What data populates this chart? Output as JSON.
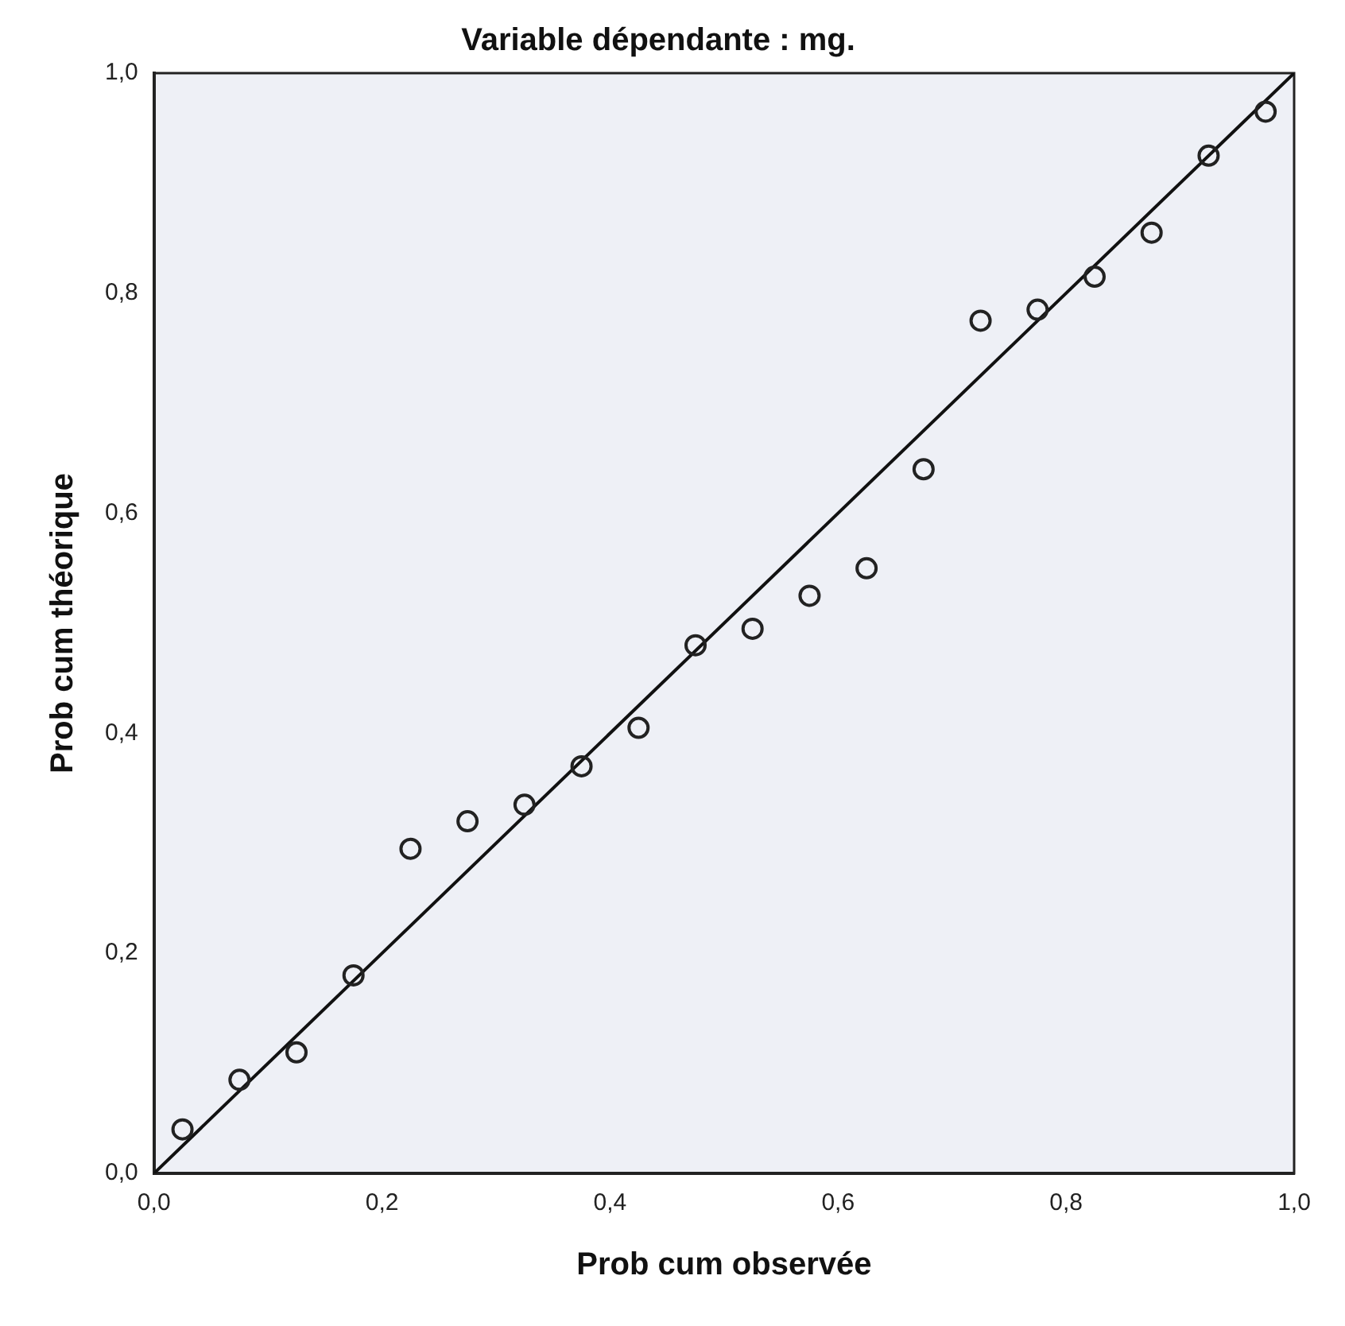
{
  "chart_data": {
    "type": "scatter",
    "title": "Variable dépendante : mg.",
    "xlabel": "Prob cum observée",
    "ylabel": "Prob cum théorique",
    "x": [
      0.025,
      0.075,
      0.125,
      0.175,
      0.225,
      0.275,
      0.325,
      0.375,
      0.425,
      0.475,
      0.525,
      0.575,
      0.625,
      0.675,
      0.725,
      0.775,
      0.825,
      0.875,
      0.925,
      0.975
    ],
    "series": [
      {
        "color": "#222222",
        "marker": "circle",
        "values": [
          0.04,
          0.085,
          0.11,
          0.18,
          0.295,
          0.32,
          0.335,
          0.37,
          0.405,
          0.48,
          0.495,
          0.525,
          0.55,
          0.64,
          0.775,
          0.785,
          0.815,
          0.855,
          0.925,
          0.965
        ]
      },
      {
        "type": "line",
        "color": "#111111",
        "marker": "none",
        "x": [
          0,
          1
        ],
        "values": [
          0,
          1
        ]
      }
    ],
    "xlim": [
      0,
      1
    ],
    "ylim": [
      0,
      1
    ],
    "xticks": [
      {
        "value": 0,
        "label": "0,0"
      },
      {
        "value": 0.2,
        "label": "0,2"
      },
      {
        "value": 0.4,
        "label": "0,4"
      },
      {
        "value": 0.6,
        "label": "0,6"
      },
      {
        "value": 0.8,
        "label": "0,8"
      },
      {
        "value": 1,
        "label": "1,0"
      }
    ],
    "yticks": [
      {
        "value": 0,
        "label": "0,0"
      },
      {
        "value": 0.2,
        "label": "0,2"
      },
      {
        "value": 0.4,
        "label": "0,4"
      },
      {
        "value": 0.6,
        "label": "0,6"
      },
      {
        "value": 0.8,
        "label": "0,8"
      },
      {
        "value": 1,
        "label": "1,0"
      }
    ],
    "grid": false,
    "legend": false
  }
}
